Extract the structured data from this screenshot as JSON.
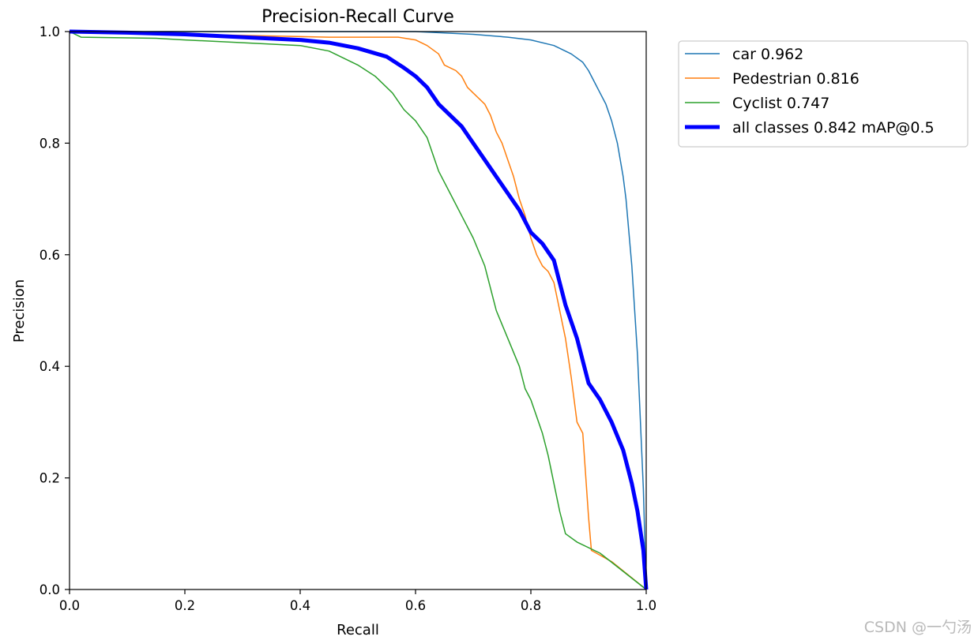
{
  "chart_data": {
    "type": "line",
    "title": "Precision-Recall Curve",
    "xlabel": "Recall",
    "ylabel": "Precision",
    "xlim": [
      0,
      1
    ],
    "ylim": [
      0,
      1
    ],
    "xticks": [
      "0.0",
      "0.2",
      "0.4",
      "0.6",
      "0.8",
      "1.0"
    ],
    "yticks": [
      "0.0",
      "0.2",
      "0.4",
      "0.6",
      "0.8",
      "1.0"
    ],
    "grid": false,
    "legend_position": "upper right, outside plot",
    "series": [
      {
        "name": "car 0.962",
        "color": "#1f77b4",
        "width": 1.5,
        "points": [
          [
            0,
            1.0
          ],
          [
            0.3,
            1.0
          ],
          [
            0.6,
            1.0
          ],
          [
            0.7,
            0.995
          ],
          [
            0.76,
            0.99
          ],
          [
            0.8,
            0.985
          ],
          [
            0.84,
            0.975
          ],
          [
            0.87,
            0.96
          ],
          [
            0.89,
            0.945
          ],
          [
            0.9,
            0.93
          ],
          [
            0.91,
            0.91
          ],
          [
            0.92,
            0.89
          ],
          [
            0.93,
            0.87
          ],
          [
            0.94,
            0.84
          ],
          [
            0.95,
            0.8
          ],
          [
            0.96,
            0.74
          ],
          [
            0.965,
            0.7
          ],
          [
            0.97,
            0.64
          ],
          [
            0.975,
            0.58
          ],
          [
            0.98,
            0.5
          ],
          [
            0.985,
            0.42
          ],
          [
            0.99,
            0.3
          ],
          [
            0.995,
            0.18
          ],
          [
            1.0,
            0.0
          ]
        ]
      },
      {
        "name": "Pedestrian 0.816",
        "color": "#ff7f0e",
        "width": 1.5,
        "points": [
          [
            0,
            1.0
          ],
          [
            0.3,
            0.993
          ],
          [
            0.45,
            0.99
          ],
          [
            0.57,
            0.99
          ],
          [
            0.6,
            0.985
          ],
          [
            0.62,
            0.975
          ],
          [
            0.64,
            0.96
          ],
          [
            0.65,
            0.94
          ],
          [
            0.67,
            0.93
          ],
          [
            0.68,
            0.92
          ],
          [
            0.69,
            0.9
          ],
          [
            0.7,
            0.89
          ],
          [
            0.72,
            0.87
          ],
          [
            0.73,
            0.85
          ],
          [
            0.74,
            0.82
          ],
          [
            0.75,
            0.8
          ],
          [
            0.76,
            0.77
          ],
          [
            0.77,
            0.74
          ],
          [
            0.78,
            0.7
          ],
          [
            0.79,
            0.67
          ],
          [
            0.8,
            0.63
          ],
          [
            0.81,
            0.6
          ],
          [
            0.82,
            0.58
          ],
          [
            0.83,
            0.57
          ],
          [
            0.84,
            0.55
          ],
          [
            0.85,
            0.5
          ],
          [
            0.86,
            0.45
          ],
          [
            0.87,
            0.38
          ],
          [
            0.88,
            0.3
          ],
          [
            0.89,
            0.28
          ],
          [
            0.9,
            0.13
          ],
          [
            0.905,
            0.07
          ],
          [
            0.94,
            0.05
          ],
          [
            1.0,
            0.0
          ]
        ]
      },
      {
        "name": "Cyclist 0.747",
        "color": "#2ca02c",
        "width": 1.5,
        "points": [
          [
            0,
            1.0
          ],
          [
            0.02,
            0.99
          ],
          [
            0.15,
            0.988
          ],
          [
            0.2,
            0.985
          ],
          [
            0.3,
            0.98
          ],
          [
            0.4,
            0.975
          ],
          [
            0.45,
            0.965
          ],
          [
            0.5,
            0.94
          ],
          [
            0.53,
            0.92
          ],
          [
            0.56,
            0.89
          ],
          [
            0.58,
            0.86
          ],
          [
            0.6,
            0.84
          ],
          [
            0.62,
            0.81
          ],
          [
            0.64,
            0.75
          ],
          [
            0.66,
            0.71
          ],
          [
            0.68,
            0.67
          ],
          [
            0.7,
            0.63
          ],
          [
            0.72,
            0.58
          ],
          [
            0.74,
            0.5
          ],
          [
            0.76,
            0.45
          ],
          [
            0.78,
            0.4
          ],
          [
            0.79,
            0.36
          ],
          [
            0.8,
            0.34
          ],
          [
            0.81,
            0.31
          ],
          [
            0.82,
            0.28
          ],
          [
            0.83,
            0.24
          ],
          [
            0.84,
            0.19
          ],
          [
            0.85,
            0.14
          ],
          [
            0.86,
            0.1
          ],
          [
            0.88,
            0.085
          ],
          [
            0.92,
            0.065
          ],
          [
            1.0,
            0.0
          ]
        ]
      },
      {
        "name": "all classes 0.842 mAP@0.5",
        "color": "#0000ff",
        "width": 5,
        "points": [
          [
            0,
            1.0
          ],
          [
            0.1,
            0.998
          ],
          [
            0.2,
            0.995
          ],
          [
            0.3,
            0.99
          ],
          [
            0.4,
            0.985
          ],
          [
            0.45,
            0.98
          ],
          [
            0.5,
            0.97
          ],
          [
            0.55,
            0.955
          ],
          [
            0.58,
            0.935
          ],
          [
            0.6,
            0.92
          ],
          [
            0.62,
            0.9
          ],
          [
            0.64,
            0.87
          ],
          [
            0.66,
            0.85
          ],
          [
            0.68,
            0.83
          ],
          [
            0.7,
            0.8
          ],
          [
            0.72,
            0.77
          ],
          [
            0.74,
            0.74
          ],
          [
            0.76,
            0.71
          ],
          [
            0.78,
            0.68
          ],
          [
            0.8,
            0.64
          ],
          [
            0.82,
            0.62
          ],
          [
            0.84,
            0.59
          ],
          [
            0.85,
            0.55
          ],
          [
            0.86,
            0.51
          ],
          [
            0.87,
            0.48
          ],
          [
            0.88,
            0.45
          ],
          [
            0.89,
            0.41
          ],
          [
            0.9,
            0.37
          ],
          [
            0.92,
            0.34
          ],
          [
            0.94,
            0.3
          ],
          [
            0.96,
            0.25
          ],
          [
            0.975,
            0.19
          ],
          [
            0.985,
            0.14
          ],
          [
            0.995,
            0.07
          ],
          [
            1.0,
            0.0
          ]
        ]
      }
    ]
  },
  "watermark": "CSDN @一勺汤"
}
